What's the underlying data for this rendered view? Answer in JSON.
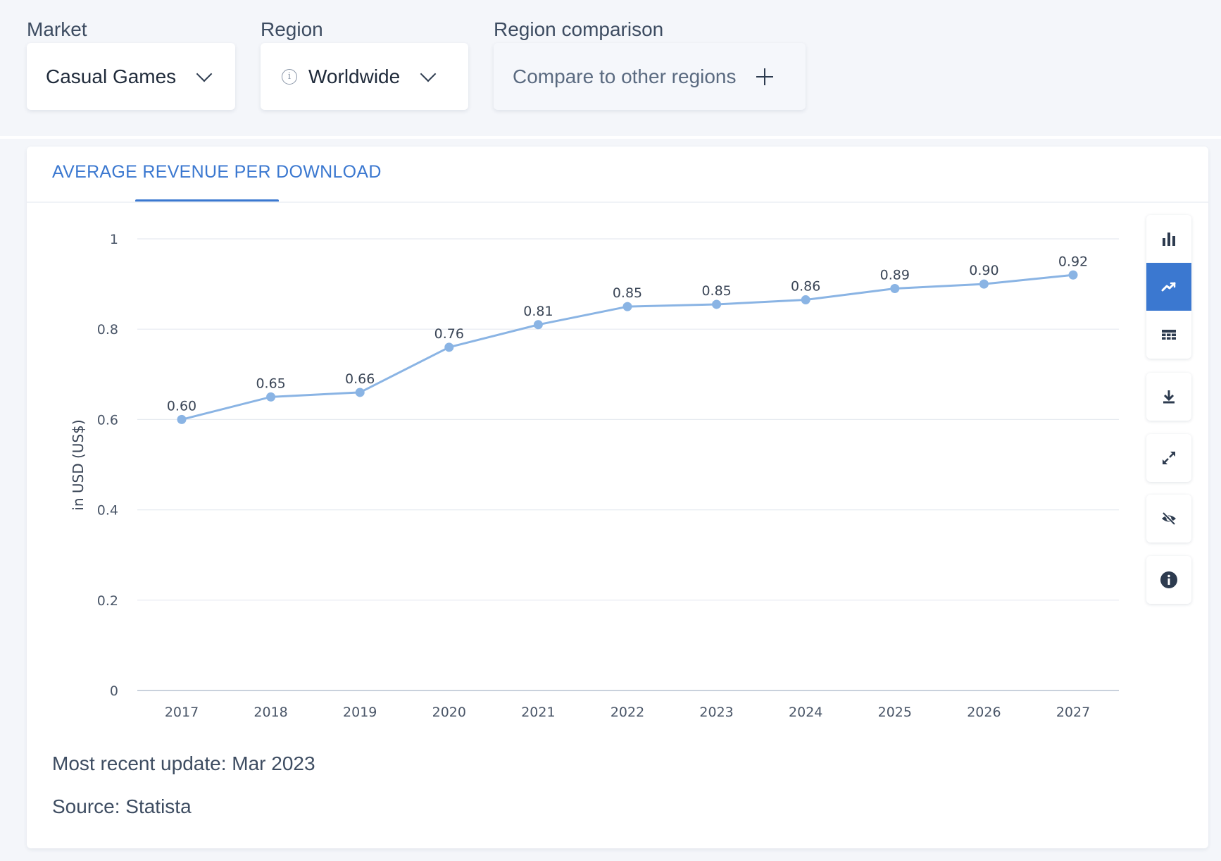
{
  "filters": {
    "market": {
      "label": "Market",
      "value": "Casual Games"
    },
    "region": {
      "label": "Region",
      "value": "Worldwide"
    },
    "comparison": {
      "label": "Region comparison",
      "value": "Compare to other regions"
    }
  },
  "card": {
    "tab_title": "AVERAGE REVENUE PER DOWNLOAD",
    "update_text": "Most recent update: Mar 2023",
    "source_text": "Source: Statista"
  },
  "toolbar": {
    "icons": [
      "bar-chart-icon",
      "line-chart-icon",
      "table-icon",
      "download-icon",
      "expand-icon",
      "hide-icon",
      "info-icon"
    ],
    "active": "line-chart-icon"
  },
  "colors": {
    "accent": "#3b78d0",
    "series": "#8ab4e4",
    "grid": "#e6eaf0"
  },
  "chart_data": {
    "type": "line",
    "categories": [
      "2017",
      "2018",
      "2019",
      "2020",
      "2021",
      "2022",
      "2023",
      "2024",
      "2025",
      "2026",
      "2027"
    ],
    "series": [
      {
        "values": [
          0.6,
          0.65,
          0.66,
          0.76,
          0.81,
          0.85,
          0.855,
          0.865,
          0.89,
          0.9,
          0.92
        ],
        "labels": [
          "0.60",
          "0.65",
          "0.66",
          "0.76",
          "0.81",
          "0.85",
          "0.85",
          "0.86",
          "0.89",
          "0.90",
          "0.92"
        ]
      }
    ],
    "ylabel": "in USD (US$)",
    "ylim": [
      0,
      1
    ],
    "yticks": [
      0,
      0.2,
      0.4,
      0.6,
      0.8,
      1
    ],
    "ytick_labels": [
      "0",
      "0.2",
      "0.4",
      "0.6",
      "0.8",
      "1"
    ],
    "grid": true
  }
}
